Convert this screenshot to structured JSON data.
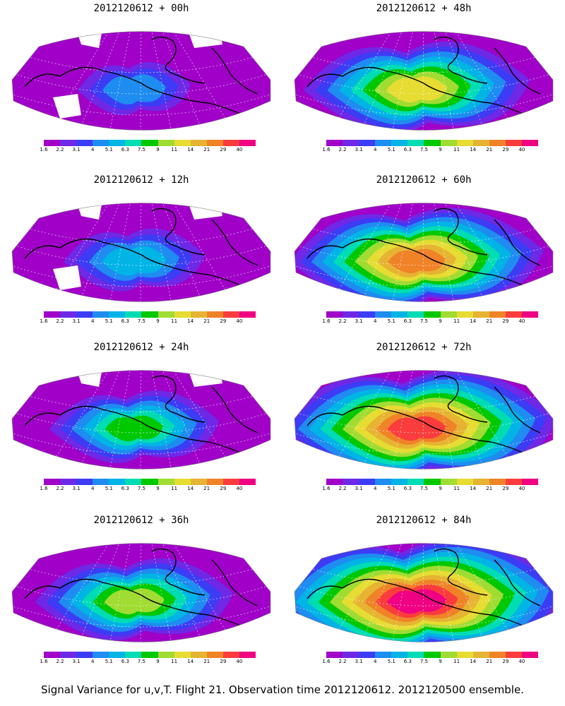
{
  "panels": [
    {
      "title": "2012120612 + 00h",
      "stage": 0
    },
    {
      "title": "2012120612 + 48h",
      "stage": 4
    },
    {
      "title": "2012120612 + 12h",
      "stage": 1
    },
    {
      "title": "2012120612 + 60h",
      "stage": 5
    },
    {
      "title": "2012120612 + 24h",
      "stage": 2
    },
    {
      "title": "2012120612 + 72h",
      "stage": 6
    },
    {
      "title": "2012120612 + 36h",
      "stage": 3
    },
    {
      "title": "2012120612 + 84h",
      "stage": 7
    }
  ],
  "colorbar": {
    "labels": [
      "1.6",
      "2.2",
      "3.1",
      "4",
      "5.1",
      "6.3",
      "7.5",
      "9",
      "11",
      "14",
      "21",
      "29",
      "40"
    ],
    "colors": [
      "#a000c8",
      "#6e28e6",
      "#3c3cf5",
      "#1e8cf0",
      "#00b4e6",
      "#00dcb4",
      "#00c800",
      "#a0dc32",
      "#e6dc32",
      "#e6b432",
      "#f08228",
      "#fa3c3c",
      "#f00082"
    ]
  },
  "caption": "Signal Variance for u,v,T. Flight 21. Observation time 2012120612. 2012120500 ensemble."
}
